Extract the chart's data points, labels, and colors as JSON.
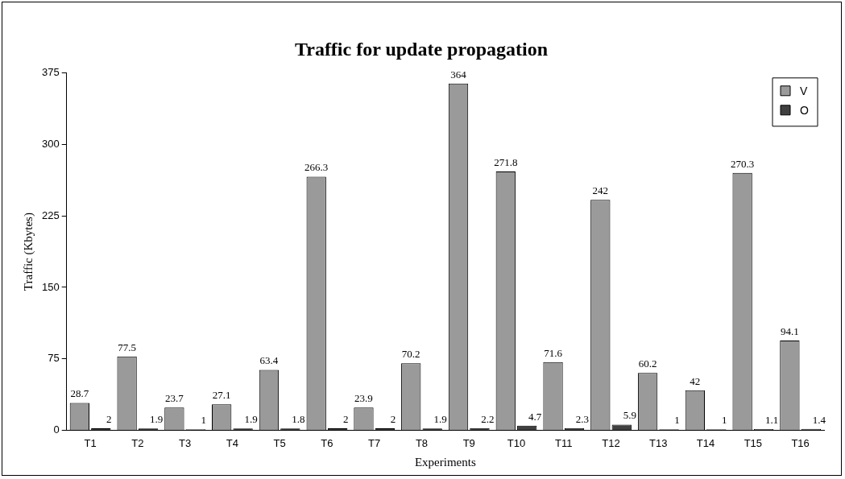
{
  "chart_data": {
    "type": "bar",
    "title": "Traffic for update propagation",
    "xlabel": "Experiments",
    "ylabel": "Traffic (Kbytes)",
    "categories": [
      "T1",
      "T2",
      "T3",
      "T4",
      "T5",
      "T6",
      "T7",
      "T8",
      "T9",
      "T10",
      "T11",
      "T12",
      "T13",
      "T14",
      "T15",
      "T16"
    ],
    "series": [
      {
        "name": "V",
        "color": "#9a9a9a",
        "values": [
          28.7,
          77.5,
          23.7,
          27.1,
          63.4,
          266.3,
          23.9,
          70.2,
          364,
          271.8,
          71.6,
          242,
          60.2,
          42,
          270.3,
          94.1
        ]
      },
      {
        "name": "O",
        "color": "#404040",
        "values": [
          2,
          1.9,
          1,
          1.9,
          1.8,
          2,
          2,
          1.9,
          2.2,
          4.7,
          2.3,
          5.9,
          1,
          1,
          1.1,
          1.4
        ]
      }
    ],
    "ylim": [
      0,
      375
    ],
    "yticks": [
      0,
      75,
      150,
      225,
      300,
      375
    ],
    "grid": false,
    "legend": "top right",
    "data_labels": true
  }
}
